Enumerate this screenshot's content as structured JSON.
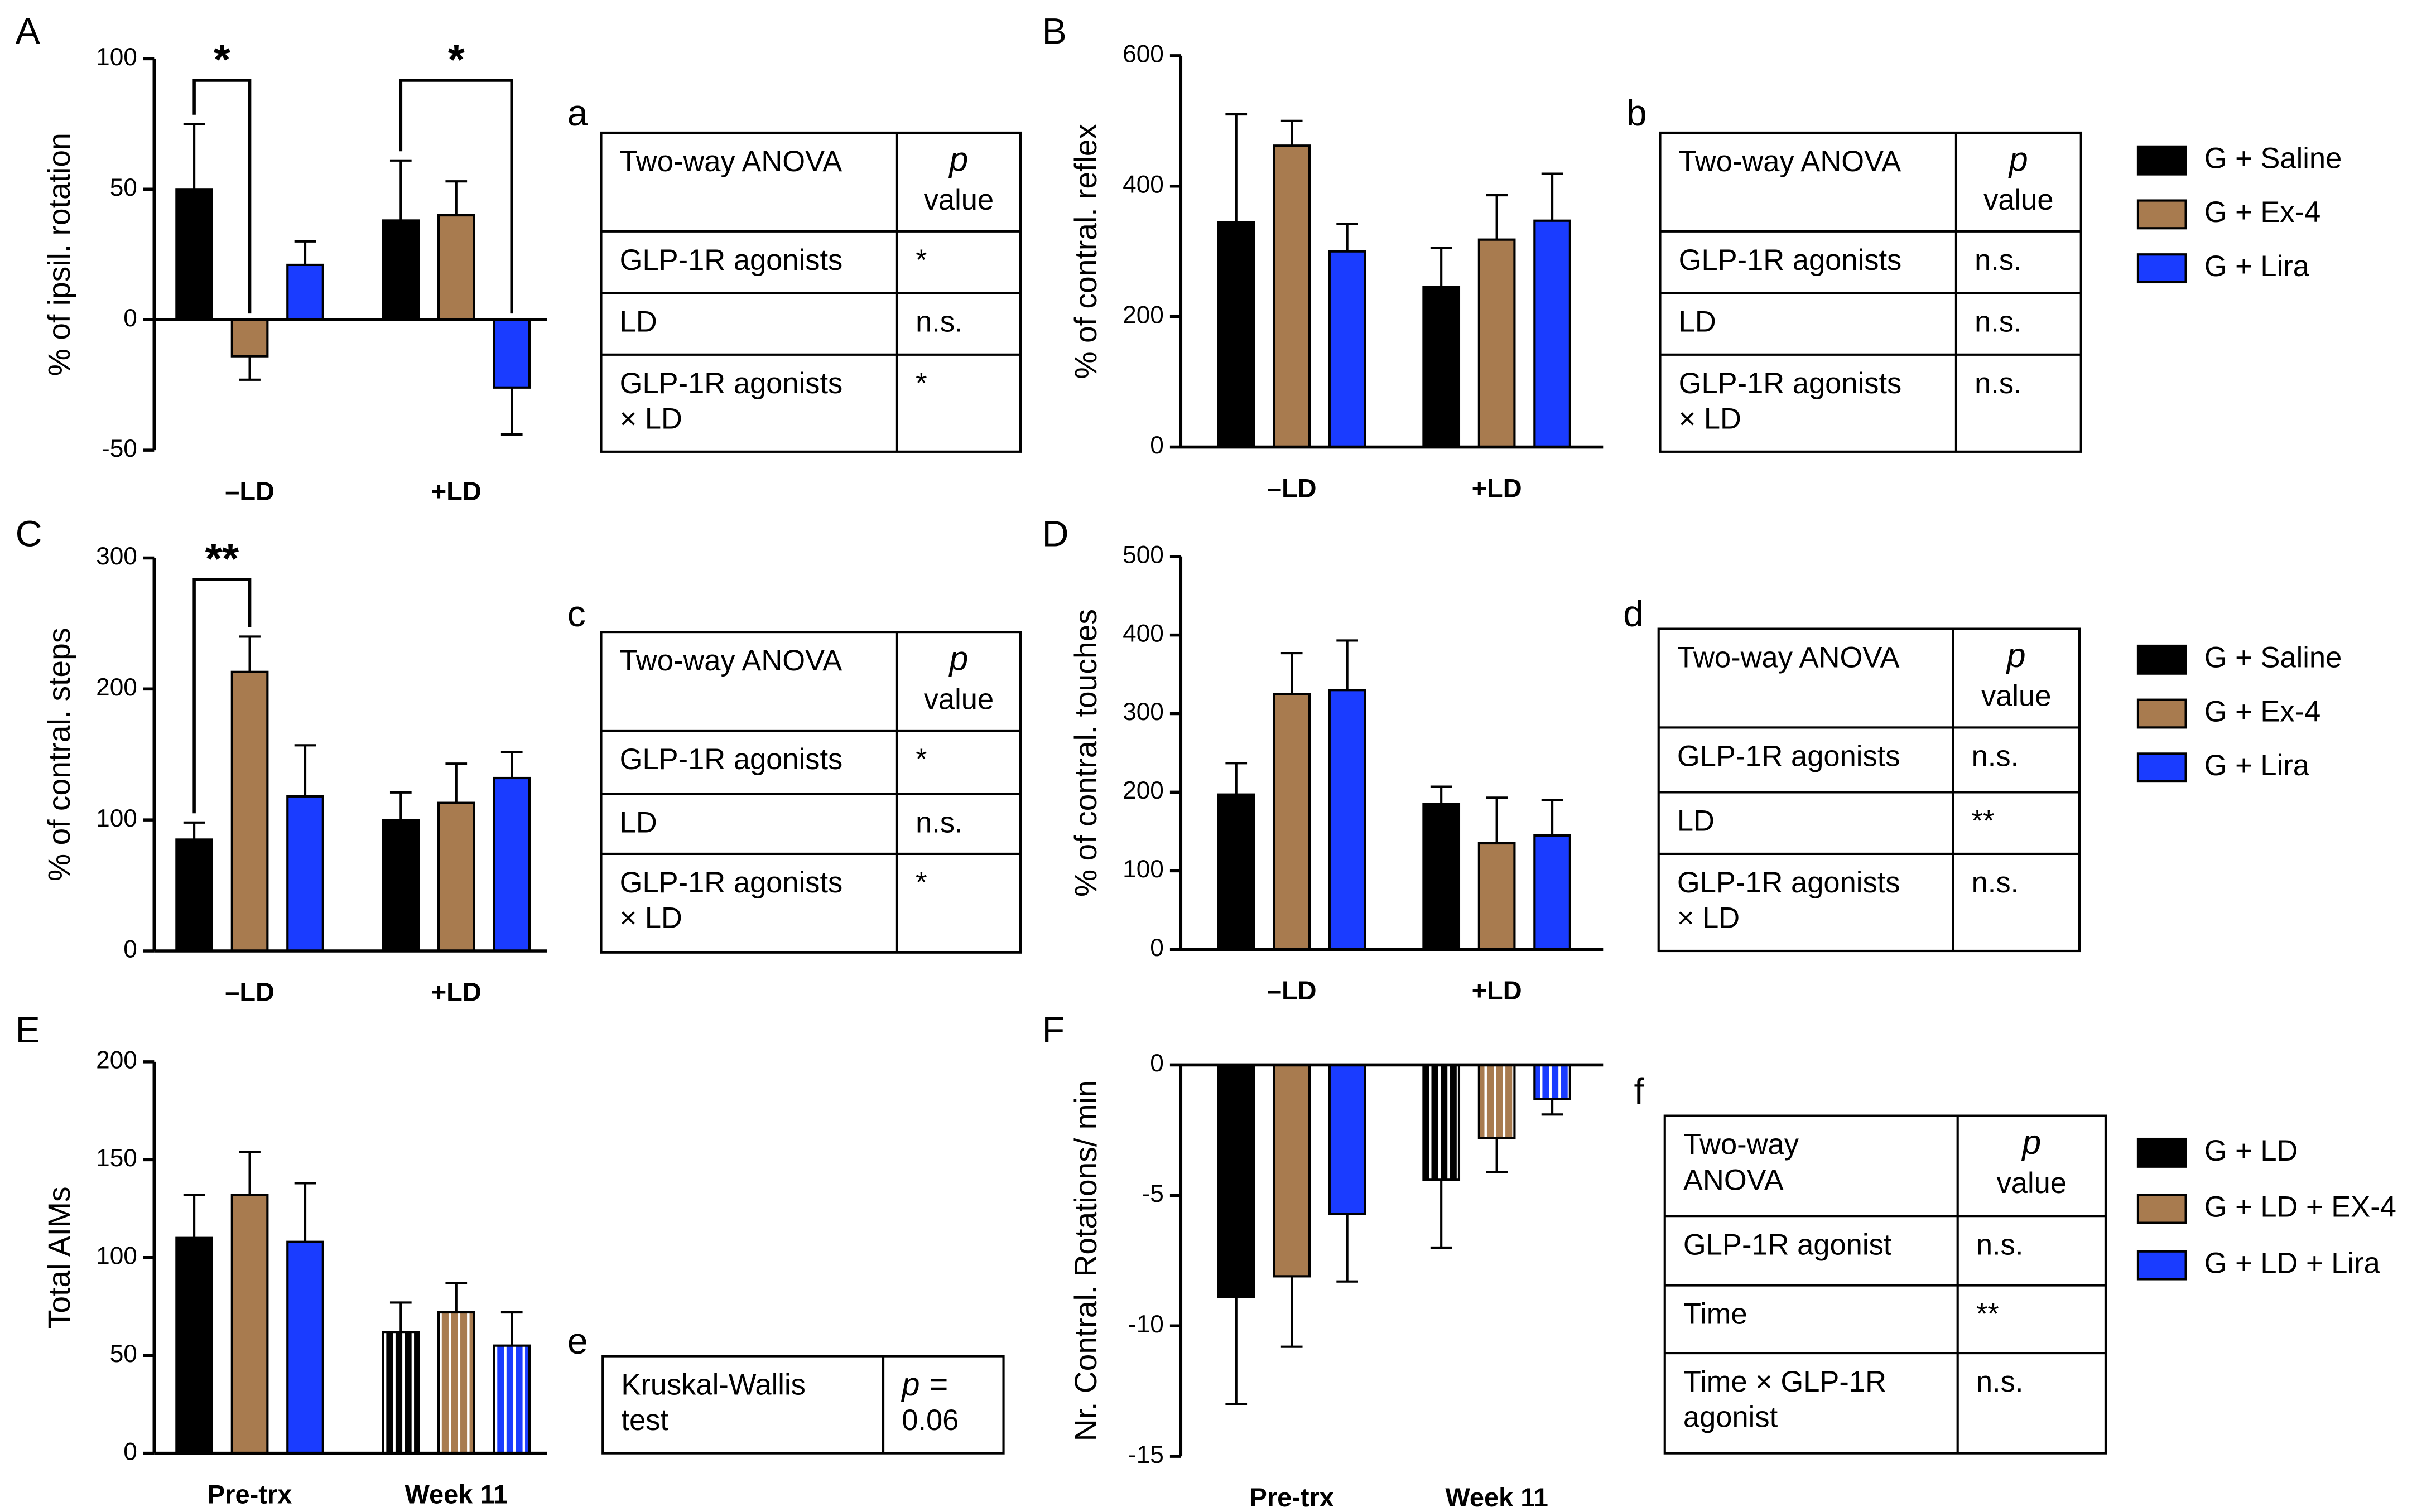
{
  "chart_data": [
    {
      "type": "bar",
      "panel": "A",
      "ylabel": "% of ipsil. rotation",
      "categories": [
        "–LD",
        "+LD"
      ],
      "series": [
        {
          "color": "#000000",
          "values": [
            50,
            38
          ],
          "errors": [
            25,
            23
          ]
        },
        {
          "color": "#a87b4f",
          "values": [
            -14,
            40
          ],
          "errors": [
            9,
            13
          ]
        },
        {
          "color": "#1a3cff",
          "values": [
            21,
            -26
          ],
          "errors": [
            9,
            18
          ]
        }
      ],
      "ylim": [
        -50,
        100
      ],
      "yticks": [
        -50,
        0,
        50,
        100
      ],
      "annotations": [
        {
          "label": "*",
          "category": 0,
          "series": [
            0,
            1
          ]
        },
        {
          "label": "*",
          "category": 1,
          "series": [
            0,
            2
          ]
        }
      ]
    },
    {
      "type": "bar",
      "panel": "B",
      "ylabel": "% of contral. reflex",
      "categories": [
        "–LD",
        "+LD"
      ],
      "series": [
        {
          "name": "G + Saline",
          "color": "#000000",
          "values": [
            345,
            245
          ],
          "errors": [
            165,
            60
          ]
        },
        {
          "name": "G + Ex-4",
          "color": "#a87b4f",
          "values": [
            462,
            318
          ],
          "errors": [
            38,
            68
          ]
        },
        {
          "name": "G + Lira",
          "color": "#1a3cff",
          "values": [
            300,
            347
          ],
          "errors": [
            42,
            72
          ]
        }
      ],
      "ylim": [
        0,
        600
      ],
      "yticks": [
        0,
        200,
        400,
        600
      ]
    },
    {
      "type": "bar",
      "panel": "C",
      "ylabel": "% of contral. steps",
      "categories": [
        "–LD",
        "+LD"
      ],
      "series": [
        {
          "color": "#000000",
          "values": [
            85,
            100
          ],
          "errors": [
            13,
            21
          ]
        },
        {
          "color": "#a87b4f",
          "values": [
            213,
            113
          ],
          "errors": [
            27,
            30
          ]
        },
        {
          "color": "#1a3cff",
          "values": [
            118,
            132
          ],
          "errors": [
            39,
            20
          ]
        }
      ],
      "ylim": [
        0,
        300
      ],
      "yticks": [
        0,
        100,
        200,
        300
      ],
      "annotations": [
        {
          "label": "**",
          "category": 0,
          "series": [
            0,
            1
          ]
        }
      ]
    },
    {
      "type": "bar",
      "panel": "D",
      "ylabel": "% of contral. touches",
      "categories": [
        "–LD",
        "+LD"
      ],
      "series": [
        {
          "name": "G + Saline",
          "color": "#000000",
          "values": [
            197,
            185
          ],
          "errors": [
            40,
            22
          ]
        },
        {
          "name": "G + Ex-4",
          "color": "#a87b4f",
          "values": [
            325,
            135
          ],
          "errors": [
            52,
            58
          ]
        },
        {
          "name": "G + Lira",
          "color": "#1a3cff",
          "values": [
            330,
            145
          ],
          "errors": [
            63,
            45
          ]
        }
      ],
      "ylim": [
        0,
        500
      ],
      "yticks": [
        0,
        100,
        200,
        300,
        400,
        500
      ]
    },
    {
      "type": "bar",
      "panel": "E",
      "ylabel": "Total AIMs",
      "categories": [
        "Pre-trx",
        "Week  11"
      ],
      "series": [
        {
          "color": "#000000",
          "values": [
            110,
            62
          ],
          "errors": [
            22,
            15
          ]
        },
        {
          "color": "#a87b4f",
          "values": [
            132,
            72
          ],
          "errors": [
            22,
            15
          ]
        },
        {
          "color": "#1a3cff",
          "values": [
            108,
            55
          ],
          "errors": [
            30,
            17
          ]
        }
      ],
      "ylim": [
        0,
        200
      ],
      "yticks": [
        0,
        50,
        100,
        150,
        200
      ],
      "hatched_categories": [
        1
      ]
    },
    {
      "type": "bar",
      "panel": "F",
      "ylabel": "Nr. Contral. Rotations/ min",
      "categories": [
        "Pre-trx",
        "Week  11"
      ],
      "series": [
        {
          "name": "G + LD",
          "color": "#000000",
          "values": [
            -8.9,
            -4.4
          ],
          "errors": [
            4.1,
            2.6
          ]
        },
        {
          "name": "G + LD + EX-4",
          "color": "#a87b4f",
          "values": [
            -8.1,
            -2.8
          ],
          "errors": [
            2.7,
            1.3
          ]
        },
        {
          "name": "G + LD + Lira",
          "color": "#1a3cff",
          "values": [
            -5.7,
            -1.3
          ],
          "errors": [
            2.6,
            0.6
          ]
        }
      ],
      "ylim": [
        -15,
        0
      ],
      "yticks": [
        -15,
        -10,
        -5,
        0
      ],
      "hatched_categories": [
        1
      ]
    }
  ],
  "tables": [
    {
      "label": "a",
      "header": [
        "Two-way ANOVA",
        "p",
        "value"
      ],
      "rows": [
        [
          "GLP-1R agonists",
          "*"
        ],
        [
          "LD",
          "n.s."
        ],
        [
          [
            "GLP-1R agonists",
            "× LD"
          ],
          "*"
        ]
      ]
    },
    {
      "label": "b",
      "header": [
        "Two-way ANOVA",
        "p",
        "value"
      ],
      "rows": [
        [
          "GLP-1R agonists",
          "n.s."
        ],
        [
          "LD",
          "n.s."
        ],
        [
          [
            "GLP-1R agonists",
            " × LD"
          ],
          "n.s."
        ]
      ]
    },
    {
      "label": "c",
      "header": [
        "Two-way ANOVA",
        "p",
        "value"
      ],
      "rows": [
        [
          "GLP-1R agonists",
          "*"
        ],
        [
          "LD",
          "n.s."
        ],
        [
          [
            "GLP-1R agonists",
            "× LD"
          ],
          "*"
        ]
      ]
    },
    {
      "label": "d",
      "header": [
        "Two-way ANOVA",
        "p",
        "value"
      ],
      "rows": [
        [
          "GLP-1R agonists",
          "n.s."
        ],
        [
          "LD",
          "**"
        ],
        [
          [
            "GLP-1R agonists",
            "× LD"
          ],
          "n.s."
        ]
      ]
    },
    {
      "label": "e",
      "rows": [
        [
          [
            "Kruskal-Wallis",
            "test"
          ],
          [
            "p =",
            "0.06"
          ]
        ]
      ]
    },
    {
      "label": "f",
      "header": [
        [
          "Two-way",
          "ANOVA"
        ],
        "p",
        "value"
      ],
      "rows": [
        [
          "GLP-1R agonist",
          "n.s."
        ],
        [
          "Time",
          "**"
        ],
        [
          [
            "Time ×  GLP-1R",
            "agonist"
          ],
          "n.s."
        ]
      ]
    }
  ]
}
